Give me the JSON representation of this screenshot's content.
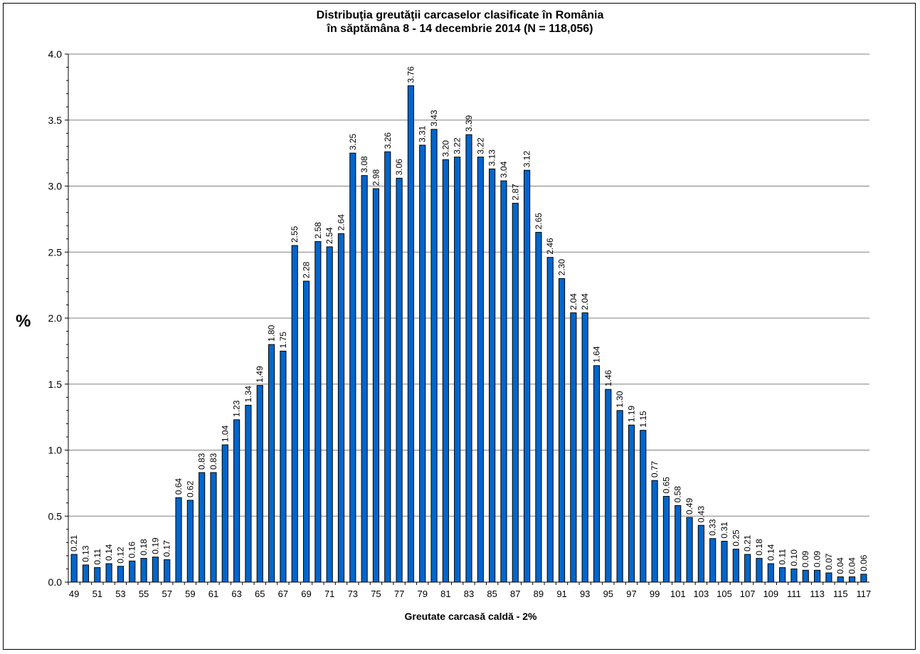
{
  "chart_data": {
    "type": "bar",
    "title_line1": "Distribuţia greutăţii carcaselor clasificate în România",
    "title_line2": "în săptămâna 8 - 14 decembrie 2014 (N = 118,056)",
    "xlabel": "Greutate carcasă caldă - 2%",
    "ylabel": "%",
    "ylim": [
      0,
      4
    ],
    "yticks": [
      "0.0",
      "0.5",
      "1.0",
      "1.5",
      "2.0",
      "2.5",
      "3.0",
      "3.5",
      "4.0"
    ],
    "grid": true,
    "bar_color": "#0066cc",
    "categories": [
      49,
      50,
      51,
      52,
      53,
      54,
      55,
      56,
      57,
      58,
      59,
      60,
      61,
      62,
      63,
      64,
      65,
      66,
      67,
      68,
      69,
      70,
      71,
      72,
      73,
      74,
      75,
      76,
      77,
      78,
      79,
      80,
      81,
      82,
      83,
      84,
      85,
      86,
      87,
      88,
      89,
      90,
      91,
      92,
      93,
      94,
      95,
      96,
      97,
      98,
      99,
      100,
      101,
      102,
      103,
      104,
      105,
      106,
      107,
      108,
      109,
      110,
      111,
      112,
      113,
      114,
      115,
      116,
      117
    ],
    "x_tick_labels": [
      "49",
      "51",
      "53",
      "55",
      "57",
      "59",
      "61",
      "63",
      "65",
      "67",
      "69",
      "71",
      "73",
      "75",
      "77",
      "79",
      "81",
      "83",
      "85",
      "87",
      "89",
      "91",
      "93",
      "95",
      "97",
      "99",
      "101",
      "103",
      "105",
      "107",
      "109",
      "111",
      "113",
      "115",
      "117"
    ],
    "values": [
      0.21,
      0.13,
      0.11,
      0.14,
      0.12,
      0.16,
      0.18,
      0.19,
      0.17,
      0.64,
      0.62,
      0.83,
      0.83,
      1.04,
      1.23,
      1.34,
      1.49,
      1.8,
      1.75,
      2.55,
      2.28,
      2.58,
      2.54,
      2.64,
      3.25,
      3.08,
      2.98,
      3.26,
      3.06,
      3.76,
      3.31,
      3.43,
      3.2,
      3.22,
      3.39,
      3.22,
      3.13,
      3.04,
      2.87,
      3.12,
      2.65,
      2.46,
      2.3,
      2.04,
      2.04,
      1.64,
      1.46,
      1.3,
      1.19,
      1.15,
      0.77,
      0.65,
      0.58,
      0.49,
      0.43,
      0.33,
      0.31,
      0.25,
      0.21,
      0.18,
      0.14,
      0.11,
      0.1,
      0.09,
      0.09,
      0.07,
      0.04,
      0.04,
      0.06
    ],
    "data_labels": [
      "0.21",
      "0.13",
      "0.11",
      "0.14",
      "0.12",
      "0.16",
      "0.18",
      "0.19",
      "0.17",
      "0.64",
      "0.62",
      "0.83",
      "0.83",
      "1.04",
      "1.23",
      "1.34",
      "1.49",
      "1.80",
      "1.75",
      "2.55",
      "2.28",
      "2.58",
      "2.54",
      "2.64",
      "3.25",
      "3.08",
      "2.98",
      "3.26",
      "3.06",
      "3.76",
      "3.31",
      "3.43",
      "3.20",
      "3.22",
      "3.39",
      "3.22",
      "3.13",
      "3.04",
      "2.87",
      "3.12",
      "2.65",
      "2.46",
      "2.30",
      "2.04",
      "2.04",
      "1.64",
      "1.46",
      "1.30",
      "1.19",
      "1.15",
      "0.77",
      "0.65",
      "0.58",
      "0.49",
      "0.43",
      "0.33",
      "0.31",
      "0.25",
      "0.21",
      "0.18",
      "0.14",
      "0.11",
      "0.10",
      "0.09",
      "0.09",
      "0.07",
      "0.04",
      "0.04",
      "0.06"
    ]
  }
}
